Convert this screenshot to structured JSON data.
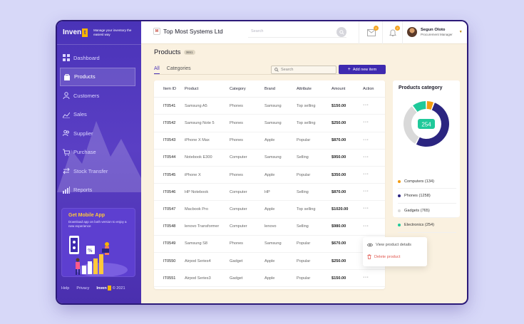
{
  "brand": {
    "name": "Inven",
    "mark": "t",
    "tagline": "Manage your inventory the easiest way"
  },
  "sidebar": {
    "items": [
      {
        "label": "Dashboard",
        "icon": "grid-icon"
      },
      {
        "label": "Products",
        "icon": "bag-icon",
        "active": true
      },
      {
        "label": "Customers",
        "icon": "user-icon"
      },
      {
        "label": "Sales",
        "icon": "chart-line-icon"
      },
      {
        "label": "Supplier",
        "icon": "users-icon"
      },
      {
        "label": "Purchase",
        "icon": "cart-icon"
      },
      {
        "label": "Stock Transfer",
        "icon": "transfer-icon"
      },
      {
        "label": "Reports",
        "icon": "bar-chart-icon"
      }
    ],
    "promo": {
      "title": "Get Mobile App",
      "description": "Download app on both version to enjoy a new experience"
    },
    "footer": {
      "help": "Help",
      "privacy": "Privacy",
      "brand": "Inven",
      "year": "© 2021"
    }
  },
  "topbar": {
    "company_logo": "M",
    "company": "Top Most Systems Ltd",
    "search_placeholder": "Search",
    "mail_badge": "2",
    "bell_badge": "2",
    "user_name": "Segun Oloto",
    "user_role": "Procurement Manager"
  },
  "page": {
    "title": "Products",
    "count": "3651",
    "tabs": [
      "All",
      "Categories"
    ],
    "search_placeholder": "Search",
    "add_button": "Add new item"
  },
  "table": {
    "headers": [
      "Item ID",
      "Product",
      "Category",
      "Brand",
      "Attribute",
      "Amount",
      "Action"
    ],
    "rows": [
      [
        "IT0541",
        "Samsung A5",
        "Phones",
        "Samsung",
        "Top selling",
        "$150.00",
        "···"
      ],
      [
        "IT0542",
        "Samsung Note 5",
        "Phones",
        "Samsung",
        "Top selling",
        "$250.00",
        "···"
      ],
      [
        "IT0543",
        "iPhone X Max",
        "Phones",
        "Apple",
        "Popular",
        "$870.00",
        "···"
      ],
      [
        "IT0544",
        "Notebook E300",
        "Computer",
        "Samsung",
        "Selling",
        "$950.00",
        "···"
      ],
      [
        "IT0545",
        "iPhone X",
        "Phones",
        "Apple",
        "Popular",
        "$350.00",
        "···"
      ],
      [
        "IT0546",
        "HP Notebook",
        "Computer",
        "HP",
        "Selling",
        "$870.00",
        "···"
      ],
      [
        "IT0547",
        "Macbook Pro",
        "Computer",
        "Apple",
        "Top selling",
        "$1020.00",
        "···"
      ],
      [
        "IT0548",
        "lenovo Transformer",
        "Computer",
        "lenovo",
        "Selling",
        "$980.00",
        "···"
      ],
      [
        "IT0549",
        "Samsung S8",
        "Phones",
        "Samsung",
        "Popular",
        "$670.00",
        "···"
      ],
      [
        "IT0550",
        "Airpod Series4",
        "Gadget",
        "Apple",
        "Popular",
        "$250.00",
        "···"
      ],
      [
        "IT0551",
        "Airpod Series3",
        "Gadget",
        "Apple",
        "Popular",
        "$150.00",
        "···"
      ]
    ]
  },
  "row_menu": {
    "view": "View product details",
    "delete": "Delete product"
  },
  "categories": {
    "title": "Products category",
    "total": "254",
    "items": [
      {
        "label": "Computers (134)",
        "value": 134,
        "color": "#f39c12"
      },
      {
        "label": "Phones (1258)",
        "value": 1258,
        "color": "#2b2580"
      },
      {
        "label": "Gadgets (765)",
        "value": 765,
        "color": "#d9d9d9"
      },
      {
        "label": "Electronics (254)",
        "value": 254,
        "color": "#1fc99a"
      }
    ]
  }
}
